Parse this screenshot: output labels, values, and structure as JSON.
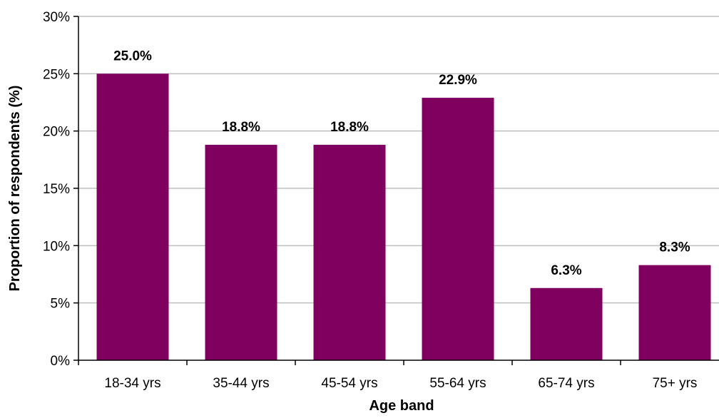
{
  "chart_data": {
    "type": "bar",
    "title": "",
    "xlabel": "Age band",
    "ylabel": "Proportion of respondents (%)",
    "categories": [
      "18-34 yrs",
      "35-44 yrs",
      "45-54 yrs",
      "55-64 yrs",
      "65-74 yrs",
      "75+ yrs"
    ],
    "values": [
      25.0,
      18.8,
      18.8,
      22.9,
      6.3,
      8.3
    ],
    "data_labels": [
      "25.0%",
      "18.8%",
      "18.8%",
      "22.9%",
      "6.3%",
      "8.3%"
    ],
    "ylim": [
      0,
      30
    ],
    "yticks": [
      0,
      5,
      10,
      15,
      20,
      25,
      30
    ],
    "ytick_labels": [
      "0%",
      "5%",
      "10%",
      "15%",
      "20%",
      "25%",
      "30%"
    ],
    "grid": true,
    "legend": "none",
    "colors": {
      "bar": "#800060",
      "grid": "#bfbfbf",
      "axis": "#000000"
    }
  }
}
